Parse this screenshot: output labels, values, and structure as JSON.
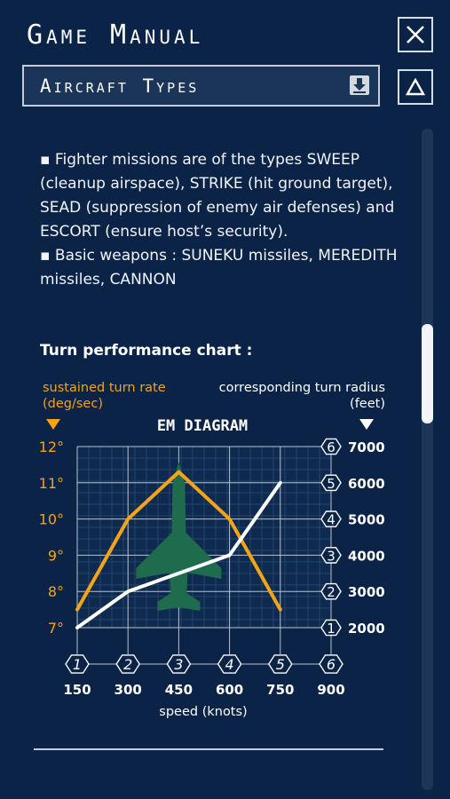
{
  "title": "Game Manual",
  "dropdown": {
    "selected": "Aircraft Types"
  },
  "buttons": {
    "close_icon": "close-icon",
    "up_icon": "triangle-up-icon",
    "dropdown_icon": "download-arrow-icon"
  },
  "body": {
    "paragraphs": [
      "▪ Fighter missions are of the types SWEEP (cleanup airspace), STRIKE (hit ground target), SEAD (suppression of enemy air defenses) and ESCORT (ensure host’s security).",
      "▪ Basic weapons : SUNEKU missiles, MEREDITH missiles, CANNON"
    ]
  },
  "chart_heading": "Turn performance chart :",
  "colors": {
    "background": "#0b2347",
    "turn_rate": "#f5a418",
    "turn_radius": "#ffffff",
    "silhouette": "#1f6b4e"
  },
  "chart_data": {
    "type": "line",
    "title": "EM DIAGRAM",
    "xlabel": "speed (knots)",
    "ylabel_left": [
      "sustained turn rate",
      "(deg/sec)"
    ],
    "ylabel_right": [
      "corresponding turn radius",
      "(feet)"
    ],
    "x": [
      150,
      300,
      450,
      600,
      750,
      900
    ],
    "x_markers": [
      "1",
      "2",
      "3",
      "4",
      "5",
      "6"
    ],
    "xlim": [
      150,
      900
    ],
    "left_ticks": [
      "7°",
      "8°",
      "9°",
      "10°",
      "11°",
      "12°"
    ],
    "left_tick_values": [
      7,
      8,
      9,
      10,
      11,
      12
    ],
    "ylim_left": [
      7,
      12
    ],
    "right_ticks": [
      "2000",
      "3000",
      "4000",
      "5000",
      "6000",
      "7000"
    ],
    "right_tick_values": [
      2000,
      3000,
      4000,
      5000,
      6000,
      7000
    ],
    "right_markers": [
      "1",
      "2",
      "3",
      "4",
      "5",
      "6"
    ],
    "ylim_right": [
      2000,
      7000
    ],
    "grid": true,
    "series": [
      {
        "axis": "left",
        "x": [
          150,
          300,
          450,
          600,
          750
        ],
        "values": [
          7.5,
          10,
          11.3,
          10,
          7.5
        ]
      },
      {
        "axis": "right",
        "x": [
          150,
          300,
          450,
          600,
          750
        ],
        "values": [
          2000,
          3000,
          3500,
          4000,
          6000
        ]
      }
    ]
  }
}
